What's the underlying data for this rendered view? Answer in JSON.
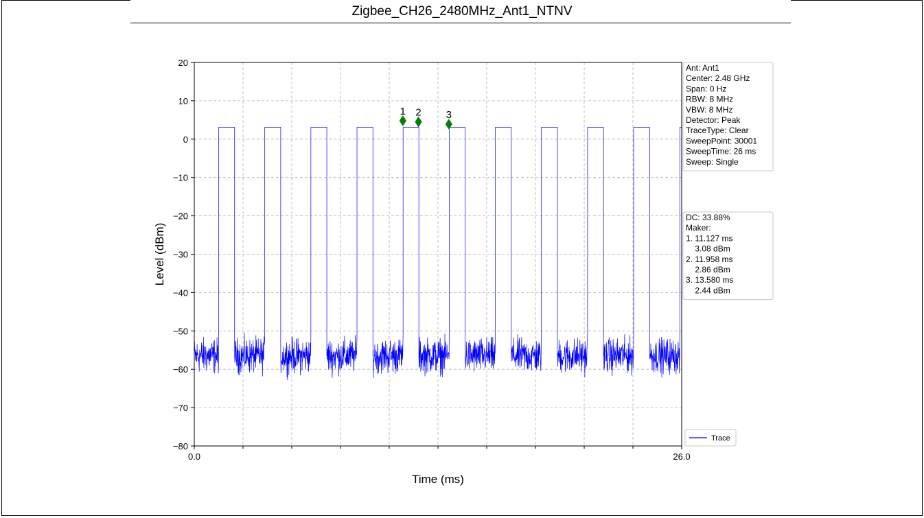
{
  "page": {
    "title": "Zigbee_CH26_2480MHz_Ant1_NTNV"
  },
  "chart_data": {
    "type": "line",
    "title": "",
    "xlabel": "Time (ms)",
    "ylabel": "Level (dBm)",
    "xlim": [
      0.0,
      26.0
    ],
    "ylim": [
      -80,
      20
    ],
    "x_tick_labels": [
      "0.0",
      "26.0"
    ],
    "x_minor_ticks": [
      2.6,
      5.2,
      7.8,
      10.4,
      13.0,
      15.6,
      18.2,
      20.8,
      23.4
    ],
    "y_ticks": [
      20,
      10,
      0,
      -10,
      -20,
      -30,
      -40,
      -50,
      -60,
      -70,
      -80
    ],
    "y_tick_labels": [
      "20",
      "10",
      "0",
      "−10",
      "−20",
      "−30",
      "−40",
      "−50",
      "−60",
      "−70",
      "−80"
    ],
    "grid": true,
    "series": [
      {
        "name": "Trace",
        "color": "#0000ff",
        "on_level_dbm": 3.1,
        "noise_floor_dbm": -56.5,
        "noise_min_dbm": -63.5,
        "noise_max_dbm": -49.5,
        "bursts_ms": [
          [
            1.3,
            2.15
          ],
          [
            3.76,
            4.61
          ],
          [
            6.22,
            7.07
          ],
          [
            8.68,
            9.53
          ],
          [
            11.14,
            11.98
          ],
          [
            13.6,
            14.45
          ],
          [
            16.06,
            16.91
          ],
          [
            18.52,
            19.37
          ],
          [
            20.98,
            21.83
          ],
          [
            23.44,
            24.29
          ],
          [
            25.9,
            26.0
          ]
        ]
      }
    ],
    "markers": [
      {
        "label": "1",
        "x": 11.127,
        "y": 4.8
      },
      {
        "label": "2",
        "x": 11.958,
        "y": 4.5
      },
      {
        "label": "3",
        "x": 13.58,
        "y": 3.9
      }
    ],
    "marker_color": "#008000",
    "legend": {
      "position": "bottom-right",
      "label": "Trace"
    },
    "settings_box": [
      "Ant: Ant1",
      "Center: 2.48 GHz",
      "Span: 0 Hz",
      "RBW: 8 MHz",
      "VBW: 8 MHz",
      "Detector: Peak",
      "TraceType: Clear",
      "SweepPoint: 30001",
      "SweepTime: 26 ms",
      "Sweep: Single"
    ],
    "result_box": [
      "DC: 33.88%",
      "Maker:",
      "1. 11.127 ms",
      "    3.08 dBm",
      "2. 11.958 ms",
      "    2.86 dBm",
      "3. 13.580 ms",
      "    2.44 dBm"
    ]
  }
}
